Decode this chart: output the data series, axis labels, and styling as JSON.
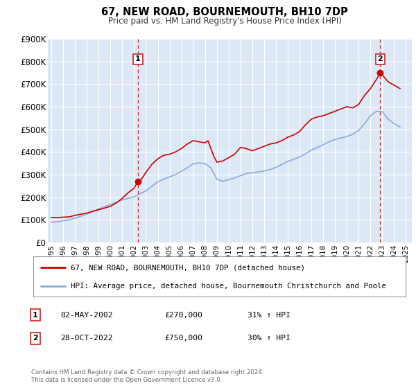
{
  "title": "67, NEW ROAD, BOURNEMOUTH, BH10 7DP",
  "subtitle": "Price paid vs. HM Land Registry's House Price Index (HPI)",
  "plot_bg_color": "#dce8f5",
  "grid_color": "#ffffff",
  "ylim": [
    0,
    900000
  ],
  "yticks": [
    0,
    100000,
    200000,
    300000,
    400000,
    500000,
    600000,
    700000,
    800000,
    900000
  ],
  "ytick_labels": [
    "£0",
    "£100K",
    "£200K",
    "£300K",
    "£400K",
    "£500K",
    "£600K",
    "£700K",
    "£800K",
    "£900K"
  ],
  "xlim_start": 1994.7,
  "xlim_end": 2025.5,
  "xticks": [
    1995,
    1996,
    1997,
    1998,
    1999,
    2000,
    2001,
    2002,
    2003,
    2004,
    2005,
    2006,
    2007,
    2008,
    2009,
    2010,
    2011,
    2012,
    2013,
    2014,
    2015,
    2016,
    2017,
    2018,
    2019,
    2020,
    2021,
    2022,
    2023,
    2024,
    2025
  ],
  "red_line_color": "#cc0000",
  "blue_line_color": "#88aadd",
  "marker1_x": 2002.33,
  "marker1_y": 270000,
  "marker2_x": 2022.83,
  "marker2_y": 750000,
  "vline1_x": 2002.33,
  "vline2_x": 2022.83,
  "legend_label_red": "67, NEW ROAD, BOURNEMOUTH, BH10 7DP (detached house)",
  "legend_label_blue": "HPI: Average price, detached house, Bournemouth Christchurch and Poole",
  "annotation1_label": "1",
  "annotation1_date": "02-MAY-2002",
  "annotation1_price": "£270,000",
  "annotation1_hpi": "31% ↑ HPI",
  "annotation2_label": "2",
  "annotation2_date": "28-OCT-2022",
  "annotation2_price": "£750,000",
  "annotation2_hpi": "30% ↑ HPI",
  "footnote": "Contains HM Land Registry data © Crown copyright and database right 2024.\nThis data is licensed under the Open Government Licence v3.0.",
  "red_x": [
    1995.0,
    1995.5,
    1996.0,
    1996.5,
    1997.0,
    1997.5,
    1998.0,
    1998.5,
    1999.0,
    1999.5,
    2000.0,
    2000.5,
    2001.0,
    2001.5,
    2002.0,
    2002.33,
    2002.6,
    2003.0,
    2003.5,
    2004.0,
    2004.5,
    2005.0,
    2005.5,
    2006.0,
    2006.5,
    2007.0,
    2007.5,
    2008.0,
    2008.25,
    2008.75,
    2009.0,
    2009.5,
    2010.0,
    2010.5,
    2011.0,
    2011.5,
    2012.0,
    2012.5,
    2013.0,
    2013.5,
    2014.0,
    2014.5,
    2015.0,
    2015.5,
    2016.0,
    2016.5,
    2017.0,
    2017.5,
    2018.0,
    2018.5,
    2019.0,
    2019.5,
    2020.0,
    2020.5,
    2021.0,
    2021.5,
    2022.0,
    2022.5,
    2022.83,
    2023.0,
    2023.5,
    2024.0,
    2024.5
  ],
  "red_y": [
    110000,
    110000,
    112000,
    113000,
    120000,
    125000,
    130000,
    138000,
    145000,
    152000,
    160000,
    175000,
    195000,
    220000,
    240000,
    270000,
    278000,
    310000,
    345000,
    370000,
    385000,
    390000,
    400000,
    415000,
    435000,
    450000,
    445000,
    440000,
    450000,
    380000,
    355000,
    360000,
    375000,
    390000,
    420000,
    415000,
    405000,
    415000,
    425000,
    435000,
    440000,
    450000,
    465000,
    475000,
    490000,
    520000,
    545000,
    555000,
    560000,
    570000,
    580000,
    590000,
    600000,
    595000,
    610000,
    650000,
    680000,
    720000,
    750000,
    740000,
    710000,
    695000,
    680000
  ],
  "blue_x": [
    1995.0,
    1995.5,
    1996.0,
    1996.5,
    1997.0,
    1997.5,
    1998.0,
    1998.5,
    1999.0,
    1999.5,
    2000.0,
    2000.5,
    2001.0,
    2001.5,
    2002.0,
    2002.5,
    2003.0,
    2003.5,
    2004.0,
    2004.5,
    2005.0,
    2005.5,
    2006.0,
    2006.5,
    2007.0,
    2007.5,
    2008.0,
    2008.5,
    2009.0,
    2009.5,
    2010.0,
    2010.5,
    2011.0,
    2011.5,
    2012.0,
    2012.5,
    2013.0,
    2013.5,
    2014.0,
    2014.5,
    2015.0,
    2015.5,
    2016.0,
    2016.5,
    2017.0,
    2017.5,
    2018.0,
    2018.5,
    2019.0,
    2019.5,
    2020.0,
    2020.5,
    2021.0,
    2021.5,
    2022.0,
    2022.5,
    2023.0,
    2023.5,
    2024.0,
    2024.5
  ],
  "blue_y": [
    90000,
    92000,
    96000,
    100000,
    108000,
    116000,
    126000,
    136000,
    148000,
    158000,
    168000,
    178000,
    188000,
    195000,
    202000,
    215000,
    228000,
    248000,
    268000,
    280000,
    290000,
    300000,
    315000,
    330000,
    348000,
    352000,
    348000,
    330000,
    280000,
    270000,
    278000,
    285000,
    295000,
    305000,
    308000,
    312000,
    316000,
    322000,
    332000,
    345000,
    358000,
    368000,
    378000,
    392000,
    408000,
    420000,
    432000,
    445000,
    455000,
    462000,
    468000,
    478000,
    495000,
    525000,
    560000,
    580000,
    578000,
    545000,
    525000,
    510000
  ]
}
